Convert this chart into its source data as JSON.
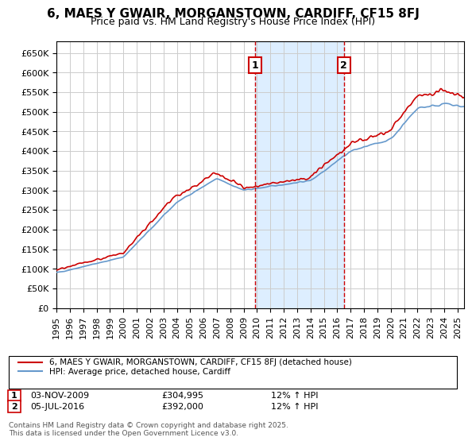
{
  "title": "6, MAES Y GWAIR, MORGANSTOWN, CARDIFF, CF15 8FJ",
  "subtitle": "Price paid vs. HM Land Registry's House Price Index (HPI)",
  "ylabel": "",
  "ylim": [
    0,
    680000
  ],
  "yticks": [
    0,
    50000,
    100000,
    150000,
    200000,
    250000,
    300000,
    350000,
    400000,
    450000,
    500000,
    550000,
    600000,
    650000
  ],
  "xlim_start": 1995.0,
  "xlim_end": 2025.5,
  "transaction1_date": 2009.84,
  "transaction1_price": 304995,
  "transaction1_label": "1",
  "transaction1_info": "03-NOV-2009    £304,995    12% ↑ HPI",
  "transaction2_date": 2016.5,
  "transaction2_price": 392000,
  "transaction2_label": "2",
  "transaction2_info": "05-JUL-2016    £392,000    12% ↑ HPI",
  "legend_line1": "6, MAES Y GWAIR, MORGANSTOWN, CARDIFF, CF15 8FJ (detached house)",
  "legend_line2": "HPI: Average price, detached house, Cardiff",
  "footer": "Contains HM Land Registry data © Crown copyright and database right 2025.\nThis data is licensed under the Open Government Licence v3.0.",
  "line_color_red": "#cc0000",
  "line_color_blue": "#6699cc",
  "shade_color": "#ddeeff",
  "grid_color": "#cccccc",
  "background_color": "#ffffff",
  "title_fontsize": 11,
  "subtitle_fontsize": 9,
  "tick_fontsize": 8
}
